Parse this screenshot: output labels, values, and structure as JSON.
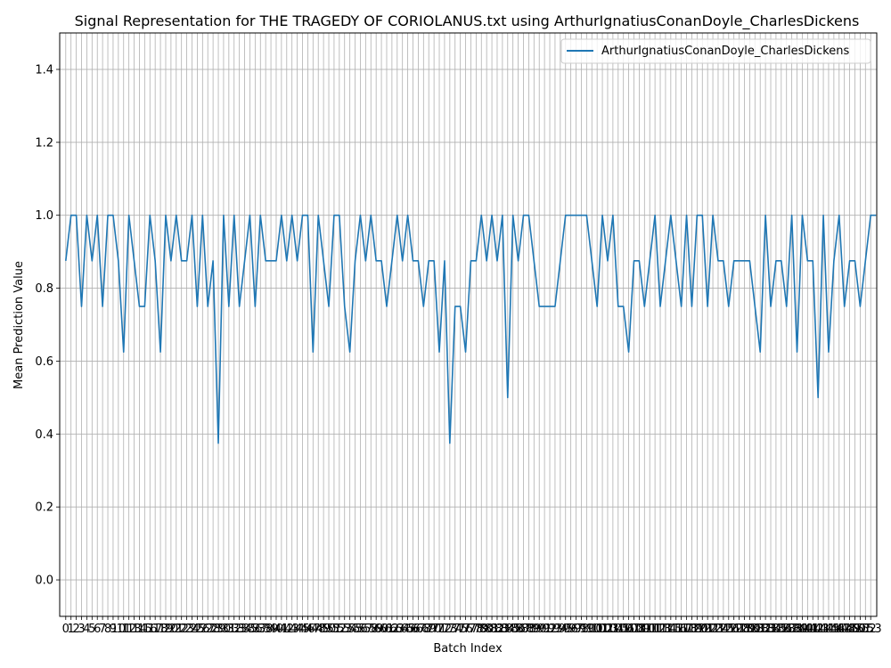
{
  "chart_data": {
    "type": "line",
    "title": "Signal Representation for THE TRAGEDY OF CORIOLANUS.txt using ArthurIgnatiusConanDoyle_CharlesDickens",
    "xlabel": "Batch Index",
    "ylabel": "Mean Prediction Value",
    "ylim": [
      -0.1,
      1.5
    ],
    "xlim": [
      -1.15,
      154.15
    ],
    "yticks": [
      0.0,
      0.2,
      0.4,
      0.6,
      0.8,
      1.0,
      1.2,
      1.4
    ],
    "ytick_labels": [
      "0.0",
      "0.2",
      "0.4",
      "0.6",
      "0.8",
      "1.0",
      "1.2",
      "1.4"
    ],
    "x_count": 154,
    "grid": true,
    "legend_position": "top-right",
    "series": [
      {
        "name": "ArthurIgnatiusConanDoyle_CharlesDickens",
        "color": "#1f77b4",
        "values": [
          0.875,
          1.0,
          1.0,
          0.75,
          1.0,
          0.875,
          1.0,
          0.75,
          1.0,
          1.0,
          0.875,
          0.625,
          1.0,
          0.875,
          0.75,
          0.75,
          1.0,
          0.875,
          0.625,
          1.0,
          0.875,
          1.0,
          0.875,
          0.875,
          1.0,
          0.75,
          1.0,
          0.75,
          0.875,
          0.375,
          1.0,
          0.75,
          1.0,
          0.75,
          0.875,
          1.0,
          0.75,
          1.0,
          0.875,
          0.875,
          0.875,
          1.0,
          0.875,
          1.0,
          0.875,
          1.0,
          1.0,
          0.625,
          1.0,
          0.875,
          0.75,
          1.0,
          1.0,
          0.75,
          0.625,
          0.875,
          1.0,
          0.875,
          1.0,
          0.875,
          0.875,
          0.75,
          0.875,
          1.0,
          0.875,
          1.0,
          0.875,
          0.875,
          0.75,
          0.875,
          0.875,
          0.625,
          0.875,
          0.375,
          0.75,
          0.75,
          0.625,
          0.875,
          0.875,
          1.0,
          0.875,
          1.0,
          0.875,
          1.0,
          0.5,
          1.0,
          0.875,
          1.0,
          1.0,
          0.875,
          0.75,
          0.75,
          0.75,
          0.75,
          0.875,
          1.0,
          1.0,
          1.0,
          1.0,
          1.0,
          0.875,
          0.75,
          1.0,
          0.875,
          1.0,
          0.75,
          0.75,
          0.625,
          0.875,
          0.875,
          0.75,
          0.875,
          1.0,
          0.75,
          0.875,
          1.0,
          0.875,
          0.75,
          1.0,
          0.75,
          1.0,
          1.0,
          0.75,
          1.0,
          0.875,
          0.875,
          0.75,
          0.875,
          0.875,
          0.875,
          0.875,
          0.75,
          0.625,
          1.0,
          0.75,
          0.875,
          0.875,
          0.75,
          1.0,
          0.625,
          1.0,
          0.875,
          0.875,
          0.5,
          1.0,
          0.625,
          0.875,
          1.0,
          0.75,
          0.875,
          0.875,
          0.75,
          0.875,
          1.0,
          1.0
        ]
      }
    ]
  }
}
